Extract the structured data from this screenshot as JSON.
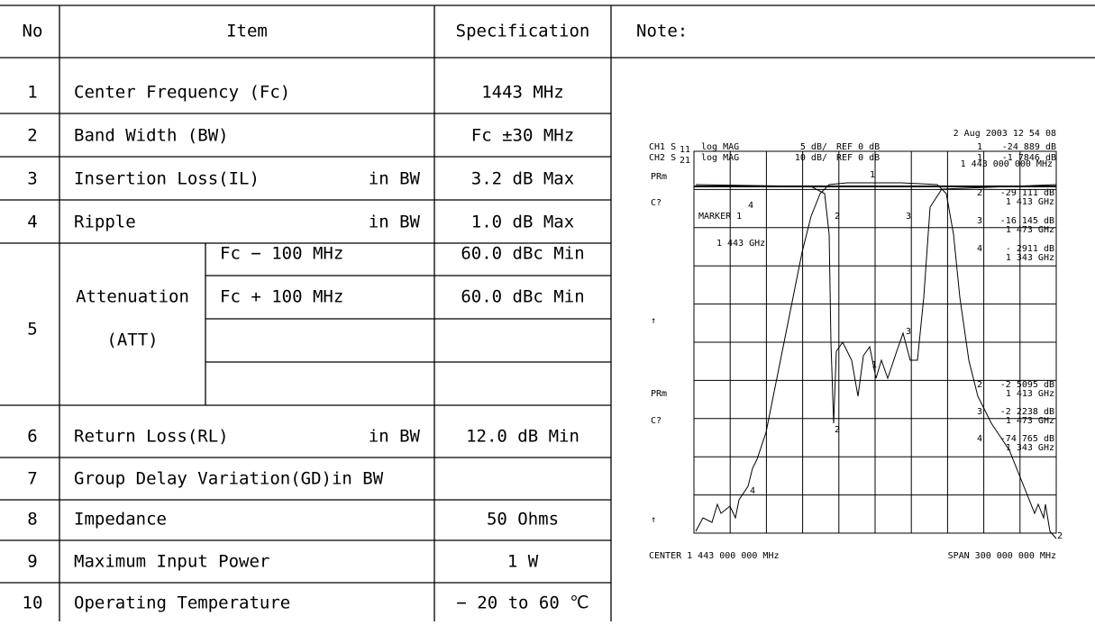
{
  "table": {
    "header": {
      "no": "No",
      "item": "Item",
      "spec": "Specification",
      "note": "Note:"
    },
    "rows": [
      {
        "no": "1",
        "item": "Center Frequency (Fc)",
        "spec": "1443 MHz"
      },
      {
        "no": "2",
        "item": "Band Width (BW)",
        "spec": "Fc ±30 MHz"
      },
      {
        "no": "3",
        "item": "Insertion Loss(IL)",
        "qualifier": "in BW",
        "spec": "3.2 dB Max"
      },
      {
        "no": "4",
        "item": "Ripple",
        "qualifier": "in BW",
        "spec": "1.0 dB Max"
      },
      {
        "no": "5",
        "item": "Attenuation",
        "item_line2": "(ATT)",
        "sub": [
          {
            "condition": "Fc − 100 MHz",
            "spec": "60.0 dBc Min"
          },
          {
            "condition": "Fc + 100 MHz",
            "spec": "60.0 dBc Min"
          }
        ]
      },
      {
        "no": "6",
        "item": "Return Loss(RL)",
        "qualifier": "in BW",
        "spec": "12.0 dB Min"
      },
      {
        "no": "7",
        "item": "Group Delay Variation(GD)in BW"
      },
      {
        "no": "8",
        "item": "Impedance",
        "spec": "50 Ohms"
      },
      {
        "no": "9",
        "item": "Maximum Input Power",
        "spec": "1 W"
      },
      {
        "no": "10",
        "item": "Operating Temperature",
        "spec": "− 20 to 60 ℃"
      }
    ]
  },
  "plot": {
    "date": "2 Aug 2003  12 54 08",
    "ch1": {
      "label": "CH1 S",
      "sub": "11",
      "format": "log MAG",
      "scale": "5 dB/",
      "ref": "REF 0 dB",
      "marker": "1",
      "value": "-24 889 dB"
    },
    "ch2": {
      "label": "CH2 S",
      "sub": "21",
      "format": "log MAG",
      "scale": "10 dB/",
      "ref": "REF 0 dB",
      "marker": "1",
      "value": "-1 7846 dB"
    },
    "marker_freq": "1  443 000 000 MHz",
    "upper_markers": [
      {
        "n": "2",
        "value": "-29 111 dB",
        "freq": "1 413 GHz"
      },
      {
        "n": "3",
        "value": "-16 145 dB",
        "freq": "1 473 GHz"
      },
      {
        "n": "4",
        "value": "- 2911  dB",
        "freq": "1 343 GHz"
      }
    ],
    "lower_markers": [
      {
        "n": "2",
        "value": "-2 5095 dB",
        "freq": "1 413 GHz"
      },
      {
        "n": "3",
        "value": "-2 2238 dB",
        "freq": "1 473 GHz"
      },
      {
        "n": "4",
        "value": "-74 765 dB",
        "freq": "1 343 GHz"
      }
    ],
    "side_labels": [
      "PRm",
      "C?",
      "↑"
    ],
    "marker_title": "MARKER 1",
    "marker_readout": "1  443 GHz",
    "trace_labels": [
      "1",
      "2",
      "3",
      "4"
    ],
    "center": "CENTER 1 443 000 000 MHz",
    "span": "SPAN  300 000 000 MHz"
  }
}
